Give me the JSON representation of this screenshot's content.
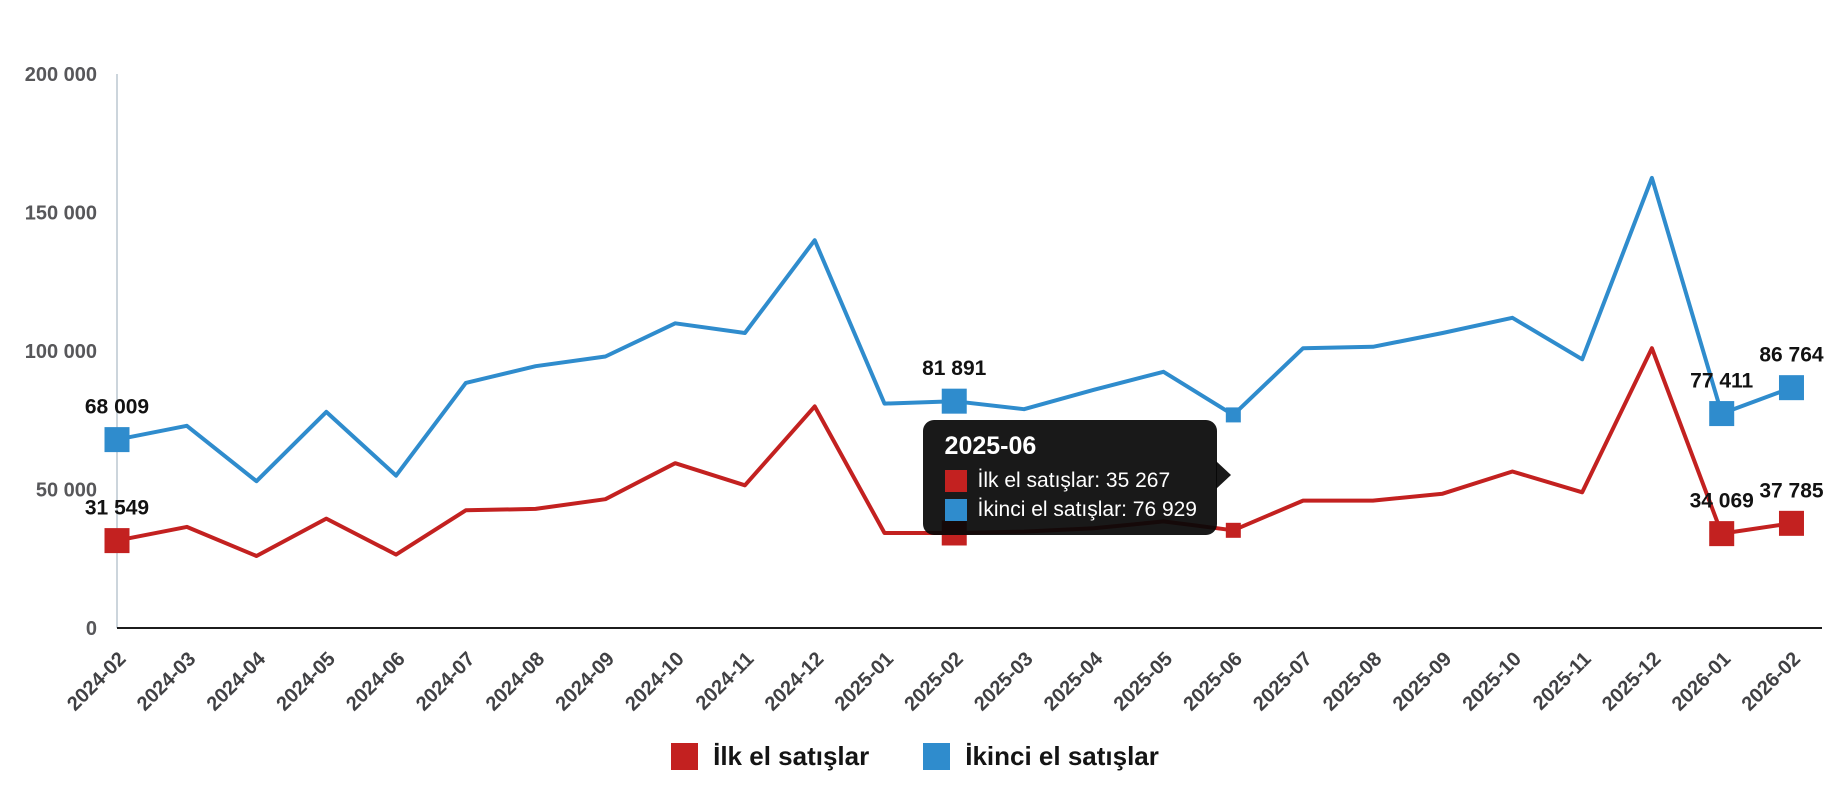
{
  "legend": {
    "items": [
      {
        "label": "İlk el satışlar",
        "color": "#c32120"
      },
      {
        "label": "İkinci el satışlar",
        "color": "#2f8ccd"
      }
    ]
  },
  "tooltip": {
    "title": "2025-06",
    "rows": [
      {
        "text": "İlk el satışlar: 35 267",
        "color": "#c32120"
      },
      {
        "text": "İkinci el satışlar: 76 929",
        "color": "#2f8ccd"
      }
    ]
  },
  "chart_data": {
    "type": "line",
    "title": "",
    "xlabel": "",
    "ylabel": "",
    "grid": false,
    "legend_position": "bottom-center",
    "x_categories": [
      "2024-02",
      "2024-03",
      "2024-04",
      "2024-05",
      "2024-06",
      "2024-07",
      "2024-08",
      "2024-09",
      "2024-10",
      "2024-11",
      "2024-12",
      "2025-01",
      "2025-02",
      "2025-03",
      "2025-04",
      "2025-05",
      "2025-06",
      "2025-07",
      "2025-08",
      "2025-09",
      "2025-10",
      "2025-11",
      "2025-12",
      "2026-01",
      "2026-02"
    ],
    "y_axis": {
      "min": 0,
      "max": 200000,
      "tick_interval": 50000,
      "ticks": [
        {
          "value": 0,
          "label": "0"
        },
        {
          "value": 50000,
          "label": "50 000"
        },
        {
          "value": 100000,
          "label": "100 000"
        },
        {
          "value": 150000,
          "label": "150 000"
        },
        {
          "value": 200000,
          "label": "200 000"
        }
      ]
    },
    "axis_colors": {
      "y_line": "#ccd5dc",
      "x_line": "#1c1c1c"
    },
    "series": [
      {
        "name": "İlk el satışlar",
        "key": "ilk-el-satislar",
        "color": "#c32120",
        "values": [
          31549,
          36500,
          26000,
          39500,
          26500,
          42500,
          43000,
          46500,
          59500,
          51500,
          80000,
          34300,
          34300,
          34800,
          36000,
          38500,
          35267,
          46000,
          46000,
          48500,
          56500,
          49000,
          101000,
          34069,
          37785
        ]
      },
      {
        "name": "İkinci el satışlar",
        "key": "ikinci-el-satislar",
        "color": "#2f8ccd",
        "values": [
          68009,
          73000,
          53000,
          78000,
          55000,
          88500,
          94500,
          98000,
          110000,
          106500,
          140000,
          81000,
          81891,
          79000,
          86000,
          92500,
          76929,
          101000,
          101500,
          106500,
          112000,
          97000,
          162500,
          77411,
          86764
        ]
      }
    ],
    "marker_points": [
      {
        "series": 1,
        "index": 0,
        "label": "68 009",
        "size": "large"
      },
      {
        "series": 0,
        "index": 0,
        "label": "31 549",
        "size": "large"
      },
      {
        "series": 1,
        "index": 12,
        "label": "81 891",
        "size": "large"
      },
      {
        "series": 0,
        "index": 12,
        "label": null,
        "size": "large"
      },
      {
        "series": 1,
        "index": 16,
        "label": null,
        "size": "small"
      },
      {
        "series": 0,
        "index": 16,
        "label": null,
        "size": "small"
      },
      {
        "series": 1,
        "index": 23,
        "label": "77 411",
        "size": "large"
      },
      {
        "series": 0,
        "index": 23,
        "label": "34 069",
        "size": "large"
      },
      {
        "series": 1,
        "index": 24,
        "label": "86 764",
        "size": "large"
      },
      {
        "series": 0,
        "index": 24,
        "label": "37 785",
        "size": "large"
      }
    ],
    "hovered_category": "2025-06"
  }
}
